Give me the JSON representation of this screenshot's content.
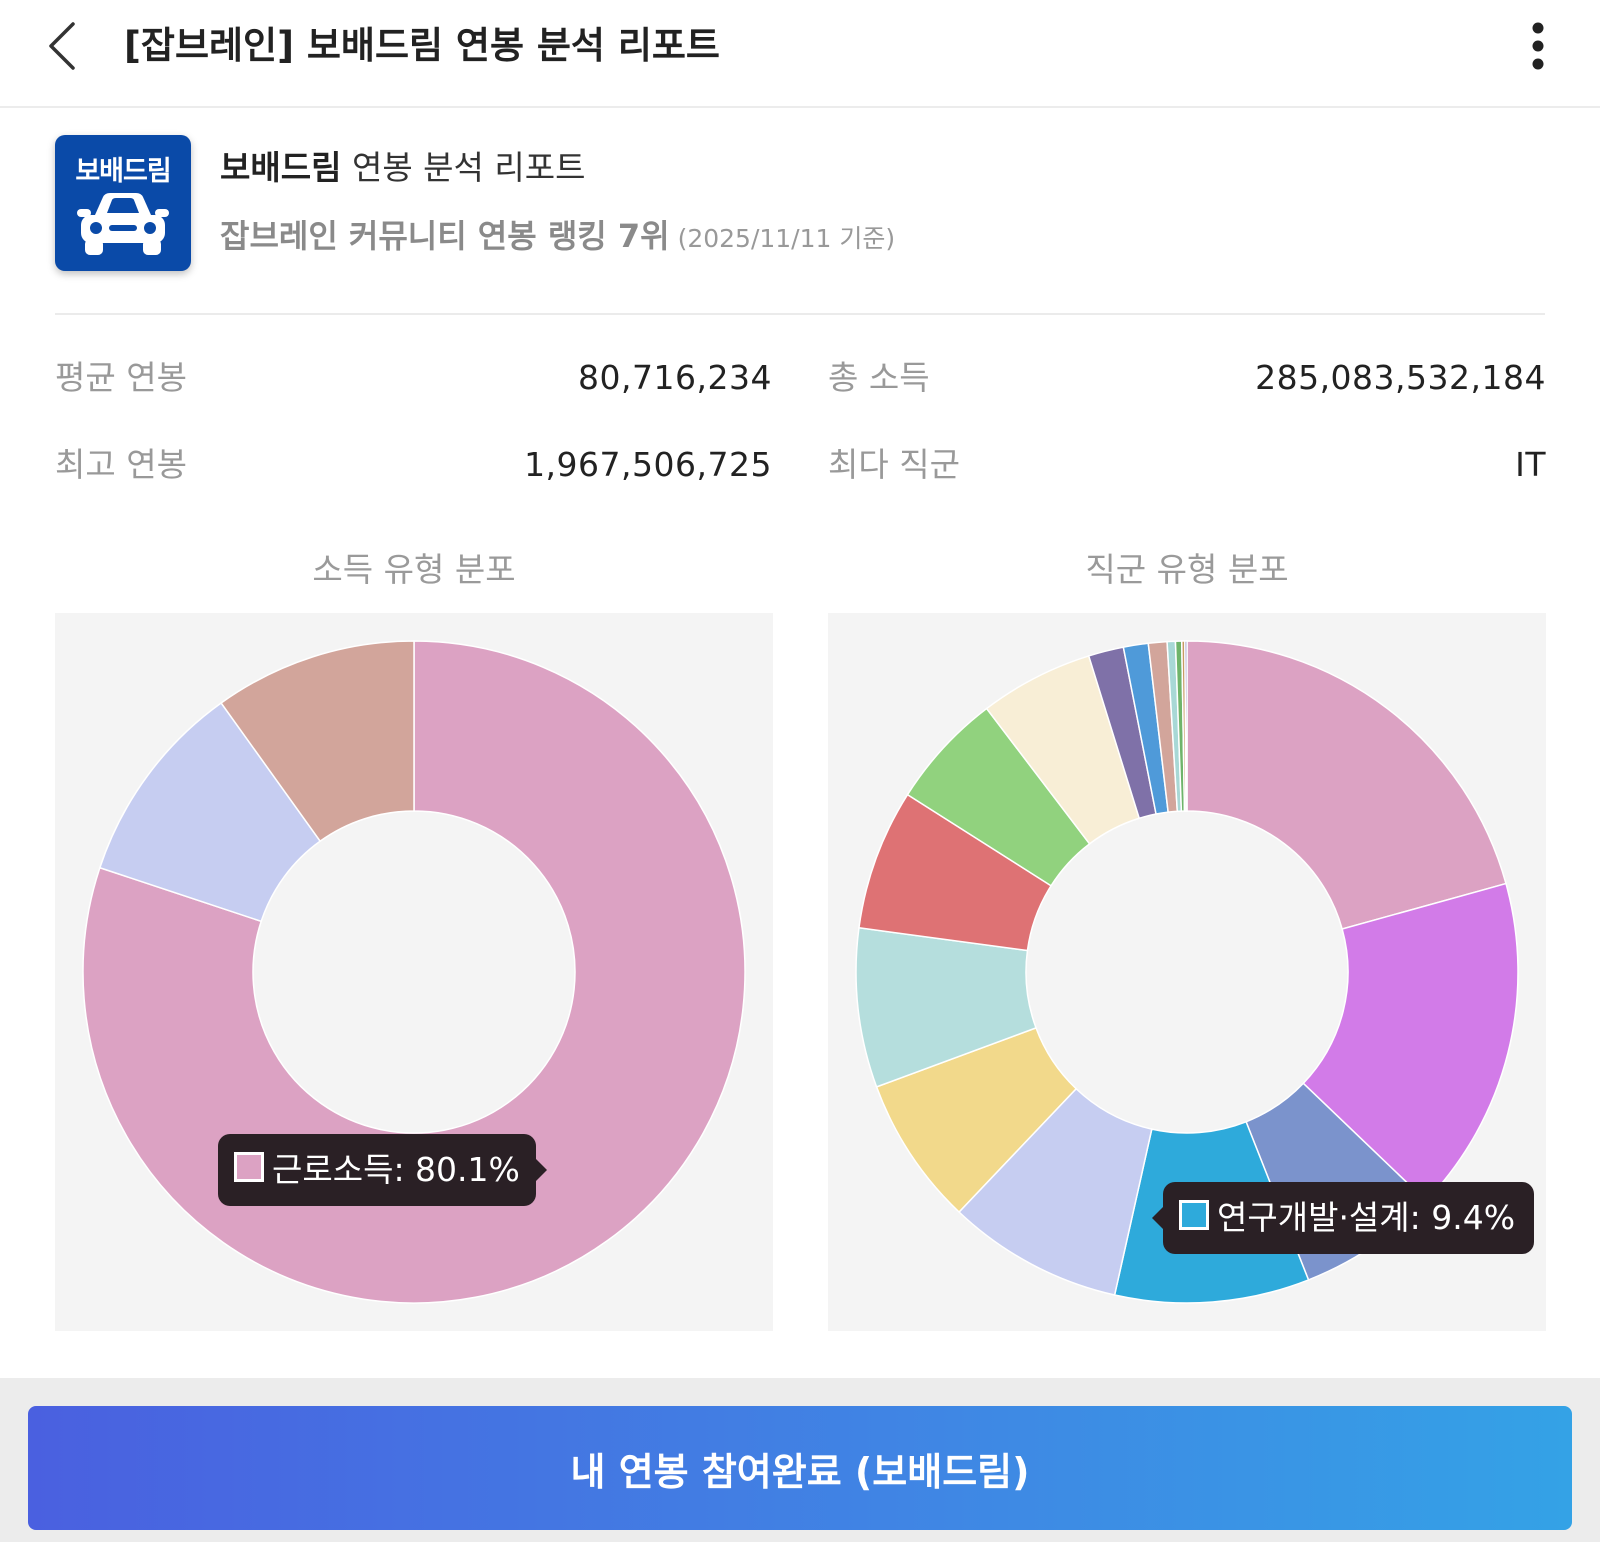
{
  "header": {
    "title": "[잡브레인] 보배드림 연봉 분석 리포트"
  },
  "company": {
    "logo_text": "보배드림",
    "name": "보배드림",
    "name_suffix": "연봉 분석 리포트",
    "ranking": "잡브레인 커뮤니티 연봉 랭킹 7위",
    "ranking_date": "(2025/11/11 기준)"
  },
  "stats": {
    "avg_salary_label": "평균 연봉",
    "avg_salary_value": "80,716,234",
    "total_income_label": "총 소득",
    "total_income_value": "285,083,532,184",
    "max_salary_label": "최고 연봉",
    "max_salary_value": "1,967,506,725",
    "top_job_label": "최다 직군",
    "top_job_value": "IT"
  },
  "chart_data": [
    {
      "type": "pie",
      "title": "소득 유형 분포",
      "donut": true,
      "slices": [
        {
          "label": "근로소득",
          "value": 80.1,
          "color": "#dca2c3"
        },
        {
          "label": "",
          "value": 10.0,
          "color": "#c6cdf1"
        },
        {
          "label": "",
          "value": 9.9,
          "color": "#d2a59b"
        }
      ],
      "tooltip": {
        "label": "근로소득",
        "value": "80.1%",
        "text": "근로소득: 80.1%"
      }
    },
    {
      "type": "pie",
      "title": "직군 유형 분포",
      "donut": true,
      "slices": [
        {
          "label": "",
          "value": 20.5,
          "color": "#dca2c3"
        },
        {
          "label": "",
          "value": 16.3,
          "color": "#d27be8"
        },
        {
          "label": "",
          "value": 6.8,
          "color": "#7b93cc"
        },
        {
          "label": "연구개발·설계",
          "value": 9.4,
          "color": "#2eaadb"
        },
        {
          "label": "",
          "value": 8.5,
          "color": "#c6cdf1"
        },
        {
          "label": "",
          "value": 7.2,
          "color": "#f2d98b"
        },
        {
          "label": "",
          "value": 7.7,
          "color": "#b5dedd"
        },
        {
          "label": "",
          "value": 6.8,
          "color": "#de7274"
        },
        {
          "label": "",
          "value": 5.6,
          "color": "#91d27e"
        },
        {
          "label": "",
          "value": 5.5,
          "color": "#f8eed6"
        },
        {
          "label": "",
          "value": 1.7,
          "color": "#7f71a8"
        },
        {
          "label": "",
          "value": 1.2,
          "color": "#4f9ad9"
        },
        {
          "label": "",
          "value": 0.9,
          "color": "#d2a59b"
        },
        {
          "label": "",
          "value": 0.4,
          "color": "#a8d8d6"
        },
        {
          "label": "",
          "value": 0.3,
          "color": "#6fb46a"
        },
        {
          "label": "",
          "value": 0.15,
          "color": "#c79a63"
        },
        {
          "label": "",
          "value": 0.1,
          "color": "#6b6bb0"
        }
      ],
      "tooltip": {
        "label": "연구개발·설계",
        "value": "9.4%",
        "text": "연구개발·설계: 9.4%"
      }
    }
  ],
  "cta": {
    "label": "내 연봉 참여완료 (보배드림)"
  },
  "colors": {
    "logo_bg": "#0a4aa8",
    "tooltip_bg": "#2a2025",
    "chart_bg": "#f4f4f4",
    "cta_gradient_start": "#4a60e0",
    "cta_gradient_end": "#34a2e6"
  },
  "icons": {
    "back": "chevron-left-icon",
    "more": "more-vertical-icon",
    "car": "car-icon"
  }
}
